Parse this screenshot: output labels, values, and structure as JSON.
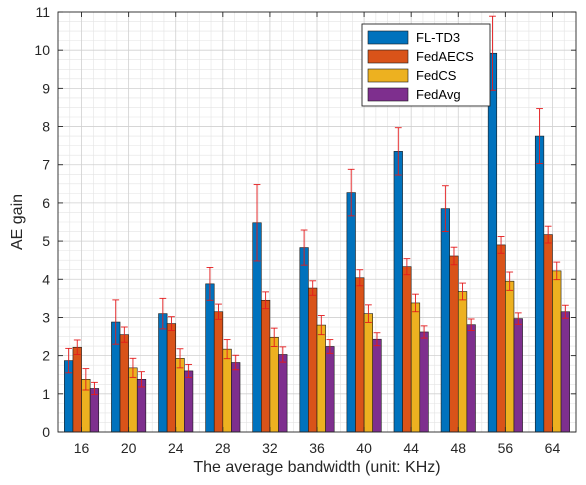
{
  "chart_data": {
    "type": "bar",
    "xlabel": "The average bandwidth (unit: KHz)",
    "ylabel": "AE gain",
    "ylim": [
      0,
      11
    ],
    "yticks": [
      0,
      1,
      2,
      3,
      4,
      5,
      6,
      7,
      8,
      9,
      10,
      11
    ],
    "grid": true,
    "minor_grid": true,
    "legend_position": "top-right",
    "categories": [
      "16",
      "20",
      "24",
      "28",
      "32",
      "36",
      "40",
      "44",
      "48",
      "56",
      "64"
    ],
    "series": [
      {
        "name": "FL-TD3",
        "color": "#0072BD",
        "values": [
          1.87,
          2.88,
          3.1,
          3.88,
          5.48,
          4.83,
          6.27,
          7.35,
          5.85,
          9.92,
          7.75
        ],
        "errors": [
          0.32,
          0.58,
          0.4,
          0.43,
          1.0,
          0.46,
          0.61,
          0.62,
          0.6,
          0.97,
          0.72
        ]
      },
      {
        "name": "FedAECS",
        "color": "#D95319",
        "values": [
          2.22,
          2.55,
          2.84,
          3.15,
          3.45,
          3.77,
          4.04,
          4.33,
          4.61,
          4.9,
          5.17
        ],
        "errors": [
          0.19,
          0.2,
          0.18,
          0.2,
          0.22,
          0.19,
          0.21,
          0.21,
          0.23,
          0.22,
          0.22
        ]
      },
      {
        "name": "FedCS",
        "color": "#EDB120",
        "values": [
          1.38,
          1.68,
          1.93,
          2.17,
          2.48,
          2.8,
          3.1,
          3.38,
          3.68,
          3.95,
          4.22
        ],
        "errors": [
          0.28,
          0.25,
          0.25,
          0.25,
          0.24,
          0.25,
          0.23,
          0.23,
          0.22,
          0.24,
          0.23
        ]
      },
      {
        "name": "FedAvg",
        "color": "#7E2F8E",
        "values": [
          1.14,
          1.38,
          1.6,
          1.82,
          2.03,
          2.24,
          2.43,
          2.62,
          2.81,
          2.97,
          3.15
        ],
        "errors": [
          0.16,
          0.2,
          0.17,
          0.19,
          0.2,
          0.18,
          0.17,
          0.16,
          0.15,
          0.15,
          0.17
        ]
      }
    ],
    "error_bar_color": "#E41A1C"
  }
}
